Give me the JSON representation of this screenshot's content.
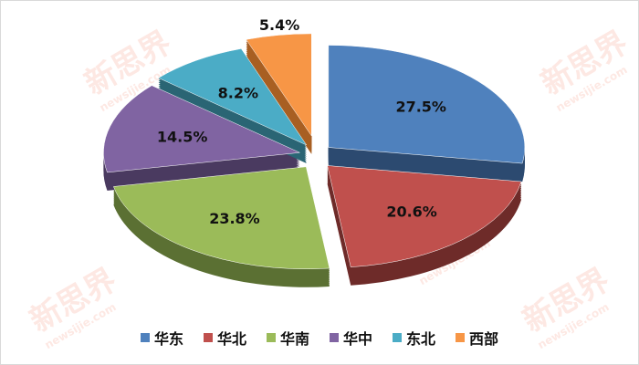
{
  "watermark": {
    "brand": "新思界",
    "site": "newsijie.com"
  },
  "chart_data": {
    "type": "pie",
    "style": "3d-exploded",
    "title": "",
    "legend_position": "bottom",
    "categories": [
      "华东",
      "华北",
      "华南",
      "华中",
      "东北",
      "西部"
    ],
    "values": [
      27.5,
      20.6,
      23.8,
      14.5,
      8.2,
      5.4
    ],
    "labels": [
      "27.5%",
      "20.6%",
      "23.8%",
      "14.5%",
      "8.2%",
      "5.4%"
    ],
    "colors": [
      "#4f81bd",
      "#c0504d",
      "#9bbb59",
      "#8064a2",
      "#4bacc6",
      "#f79646"
    ],
    "side_colors": [
      "#2c4a70",
      "#6e2b29",
      "#5b7033",
      "#4a3a60",
      "#2a6574",
      "#a85f22"
    ]
  }
}
